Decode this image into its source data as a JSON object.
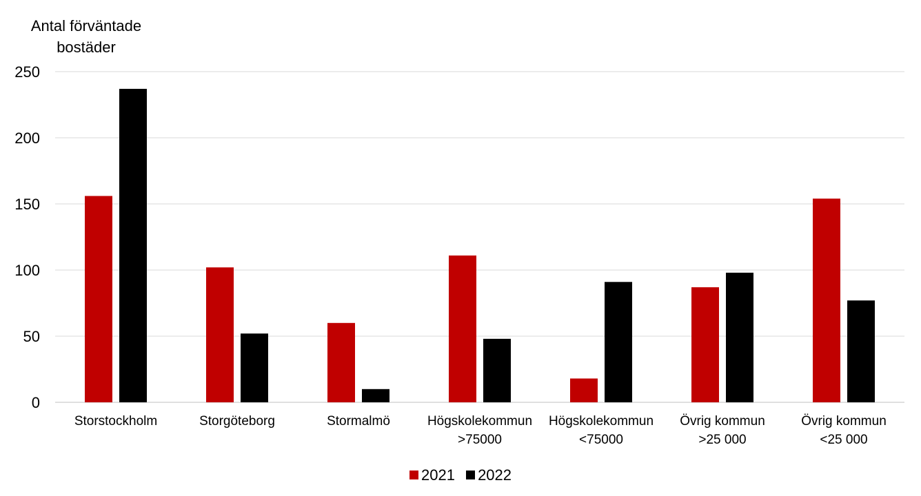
{
  "colors": {
    "s2021": "#C00000",
    "s2022": "#000000",
    "grid": "#d9d9d9"
  },
  "chart_data": {
    "type": "bar",
    "title": "",
    "ylabel_lines": [
      "Antal förväntade",
      "bostäder"
    ],
    "xlabel": "",
    "ylim": [
      0,
      250
    ],
    "yticks": [
      0,
      50,
      100,
      150,
      200,
      250
    ],
    "grid": true,
    "legend_position": "bottom",
    "categories": [
      [
        "Storstockholm"
      ],
      [
        "Storgöteborg"
      ],
      [
        "Stormalmö"
      ],
      [
        "Högskolekommun",
        ">75000"
      ],
      [
        "Högskolekommun",
        "<75000"
      ],
      [
        "Övrig kommun",
        ">25 000"
      ],
      [
        "Övrig kommun",
        "<25 000"
      ]
    ],
    "series": [
      {
        "name": "2021",
        "values": [
          156,
          102,
          60,
          111,
          18,
          87,
          154
        ]
      },
      {
        "name": "2022",
        "values": [
          237,
          52,
          10,
          48,
          91,
          98,
          77
        ]
      }
    ]
  }
}
